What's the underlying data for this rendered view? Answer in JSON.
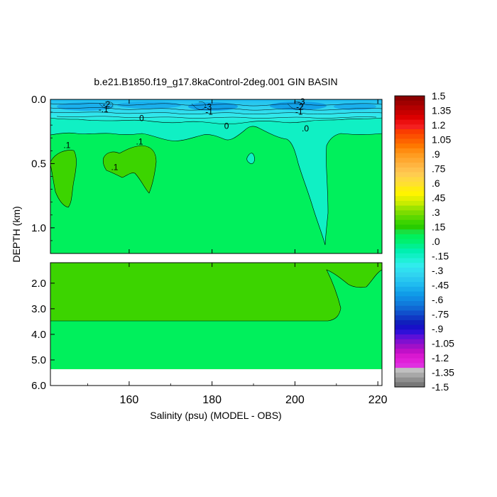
{
  "chart_data": {
    "type": "heatmap",
    "title": "b.e21.B1850.f19_g17.8kaControl-2deg.001 GIN BASIN",
    "xlabel": "Salinity (psu) (MODEL - OBS)",
    "ylabel": "DEPTH (km)",
    "x_range": [
      141,
      221
    ],
    "x_ticks": [
      160,
      180,
      200,
      220
    ],
    "upper_panel": {
      "y_range": [
        0.0,
        1.2
      ],
      "y_ticks": [
        0.0,
        0.5,
        1.0
      ],
      "y_tick_labels": [
        "0.0",
        "0.5",
        "1.0"
      ]
    },
    "lower_panel": {
      "y_range": [
        1.2,
        6.0
      ],
      "y_ticks": [
        2.0,
        3.0,
        4.0,
        5.0,
        6.0
      ],
      "y_tick_labels": [
        "2.0",
        "3.0",
        "4.0",
        "5.0",
        "6.0"
      ],
      "no_data_below_depth": 5.35
    },
    "contour_labels": [
      {
        "text": "-2",
        "x": 154.5,
        "depth": 0.06
      },
      {
        "text": "-.1",
        "x": 153.8,
        "depth": 0.1
      },
      {
        "text": "-3",
        "x": 179.0,
        "depth": 0.08
      },
      {
        "text": "-1",
        "x": 179.3,
        "depth": 0.12
      },
      {
        "text": "0",
        "x": 163.0,
        "depth": 0.17
      },
      {
        "text": "0",
        "x": 183.5,
        "depth": 0.23
      },
      {
        "text": "-3",
        "x": 201.5,
        "depth": 0.04
      },
      {
        "text": "-2",
        "x": 201.2,
        "depth": 0.08
      },
      {
        "text": "-1",
        "x": 201.0,
        "depth": 0.12
      },
      {
        "text": ".0",
        "x": 202.5,
        "depth": 0.25
      },
      {
        "text": ".1",
        "x": 145.0,
        "depth": 0.38
      },
      {
        "text": ".1",
        "x": 162.5,
        "depth": 0.35
      },
      {
        "text": ".1",
        "x": 156.5,
        "depth": 0.55
      }
    ],
    "colorbar": {
      "labels": [
        "1.5",
        "1.35",
        "1.2",
        "1.05",
        ".9",
        ".75",
        ".6",
        ".45",
        ".3",
        ".15",
        ".0",
        "-.15",
        "-.3",
        "-.45",
        "-.6",
        "-.75",
        "-.9",
        "-1.05",
        "-1.2",
        "-1.35",
        "-1.5"
      ],
      "colors": [
        "#8b0000",
        "#a00000",
        "#b40000",
        "#c80000",
        "#dc0000",
        "#ec1010",
        "#f42020",
        "#fa3c00",
        "#fc5000",
        "#fd6400",
        "#fe7800",
        "#ff8c10",
        "#ff9c20",
        "#ffa830",
        "#ffb440",
        "#ffc04c",
        "#ffcc50",
        "#ffd840",
        "#ffe030",
        "#ffec10",
        "#fff400",
        "#e4f000",
        "#c8ec00",
        "#9ce400",
        "#7cdc00",
        "#5cd800",
        "#3cd400",
        "#28cc00",
        "#18e040",
        "#00f05c",
        "#00f070",
        "#00f090",
        "#00f0b0",
        "#10f0c4",
        "#20f0d8",
        "#30ecec",
        "#30e0f0",
        "#30d4f0",
        "#28c8f0",
        "#20bcf0",
        "#18acec",
        "#109ce8",
        "#108ce4",
        "#107cdc",
        "#1068d4",
        "#1050cc",
        "#1038c4",
        "#1020bc",
        "#1810c8",
        "#3010d8",
        "#5c10d8",
        "#8010d0",
        "#a010c8",
        "#c010c8",
        "#d818d0",
        "#e020d8",
        "#e030e0",
        "#c0c0c0",
        "#a8a8a8",
        "#909090",
        "#787878"
      ]
    },
    "fill_colors": {
      "light_green": "#00f05c",
      "mid_green": "#3cd400",
      "cyan_surface": "#30e0f0",
      "teal": "#10f0c4",
      "deep_blue_cores": "#109ce8"
    }
  }
}
